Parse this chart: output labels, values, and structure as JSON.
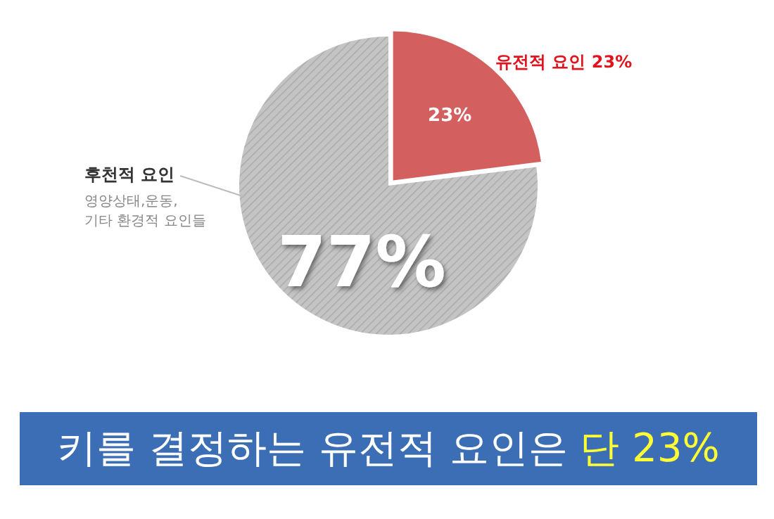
{
  "chart_data": {
    "type": "pie",
    "title": "키를 결정하는 유전적 요인은 단 23%",
    "categories": [
      "유전적 요인",
      "후천적 요인"
    ],
    "values": [
      23,
      77
    ],
    "colors": [
      "#d45f5f",
      "#c4c4c4"
    ],
    "value_labels": [
      "23%",
      "77%"
    ],
    "annotations": [
      "영양상태,운동,\n기타 환경적 요인들"
    ]
  }
}
